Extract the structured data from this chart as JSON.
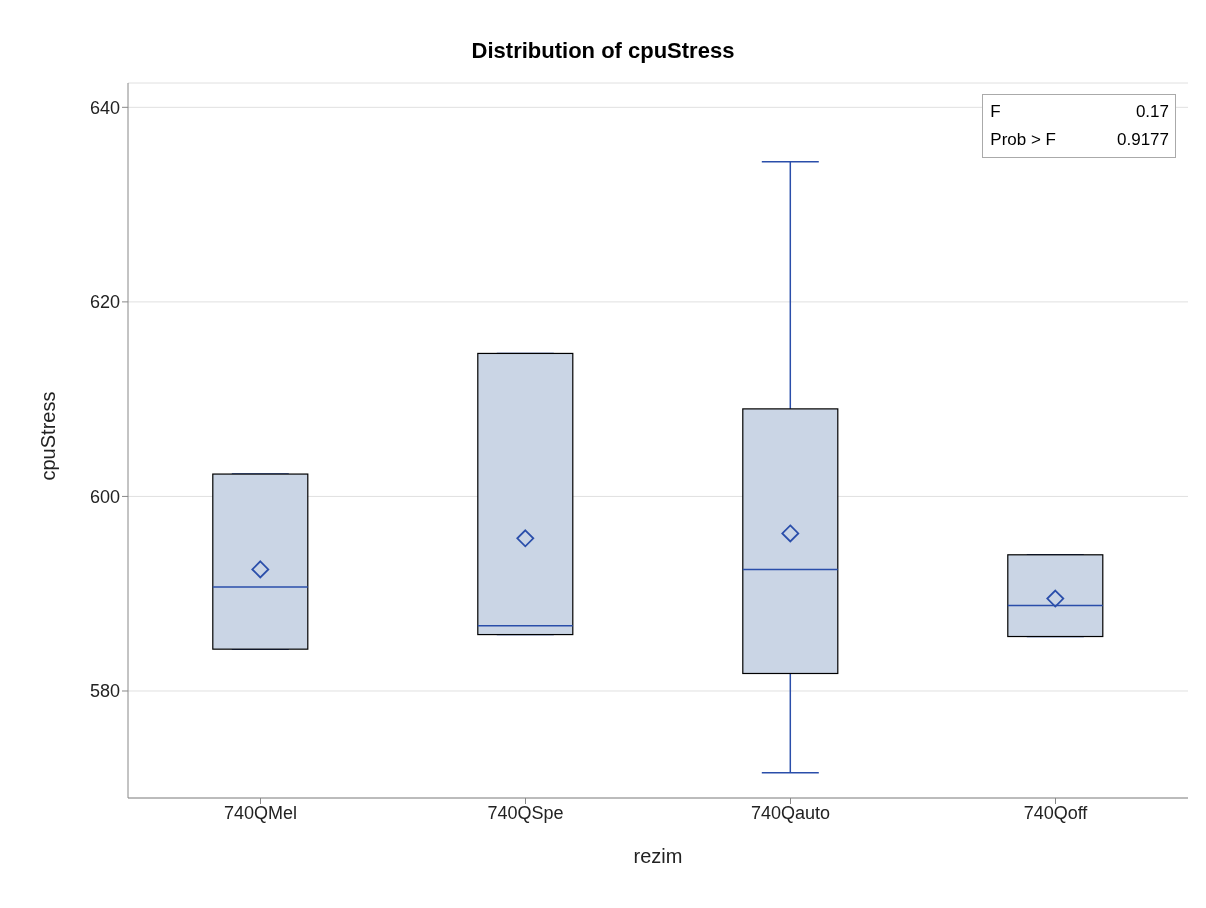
{
  "chart_data": {
    "type": "box",
    "title": "Distribution of cpuStress",
    "xlabel": "rezim",
    "ylabel": "cpuStress",
    "categories": [
      "740QMel",
      "740QSpe",
      "740Qauto",
      "740Qoff"
    ],
    "color": "#cad5e5",
    "boxes": [
      {
        "low": 584.3,
        "q1": 584.3,
        "median": 590.7,
        "q3": 602.3,
        "high": 602.3,
        "mean": 592.5
      },
      {
        "low": 585.8,
        "q1": 585.8,
        "median": 586.7,
        "q3": 614.7,
        "high": 614.7,
        "mean": 595.7
      },
      {
        "low": 571.6,
        "q1": 581.8,
        "median": 592.5,
        "q3": 609.0,
        "high": 634.4,
        "mean": 596.2
      },
      {
        "low": 585.6,
        "q1": 585.6,
        "median": 588.8,
        "q3": 594.0,
        "high": 594.0,
        "mean": 589.5
      }
    ],
    "ylim": [
      569,
      642.5
    ],
    "yticks": [
      580,
      600,
      620,
      640
    ],
    "grid": "y",
    "annotations": [
      [
        "F",
        "0.17"
      ],
      [
        "Prob > F",
        "0.9177"
      ]
    ]
  }
}
